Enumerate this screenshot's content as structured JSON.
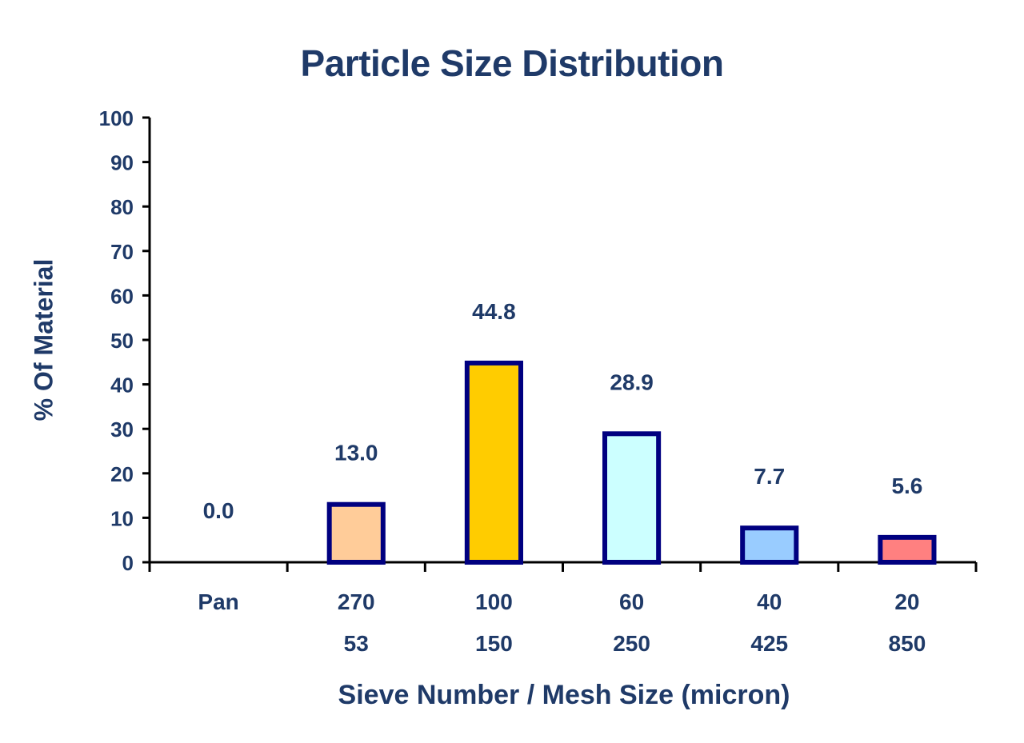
{
  "chart_data": {
    "type": "bar",
    "title": "Particle Size Distribution",
    "xlabel": "Sieve Number / Mesh Size (micron)",
    "ylabel": "% Of Material",
    "ylim": [
      0,
      100
    ],
    "yticks": [
      "0",
      "10",
      "20",
      "30",
      "40",
      "50",
      "60",
      "70",
      "80",
      "90",
      "100"
    ],
    "categories": [
      {
        "sieve": "Pan",
        "mesh": ""
      },
      {
        "sieve": "270",
        "mesh": "53"
      },
      {
        "sieve": "100",
        "mesh": "150"
      },
      {
        "sieve": "60",
        "mesh": "250"
      },
      {
        "sieve": "40",
        "mesh": "425"
      },
      {
        "sieve": "20",
        "mesh": "850"
      }
    ],
    "values": [
      0.0,
      13.0,
      44.8,
      28.9,
      7.7,
      5.6
    ],
    "value_labels": [
      "0.0",
      "13.0",
      "44.8",
      "28.9",
      "7.7",
      "5.6"
    ],
    "bar_colors": [
      "#ffffff",
      "#ffcc99",
      "#ffcc00",
      "#ccffff",
      "#99ccff",
      "#ff8080"
    ],
    "bar_outline": "#000080",
    "text_color": "#1f3a68",
    "axis_color": "#000000",
    "grid": false,
    "legend": "none"
  }
}
